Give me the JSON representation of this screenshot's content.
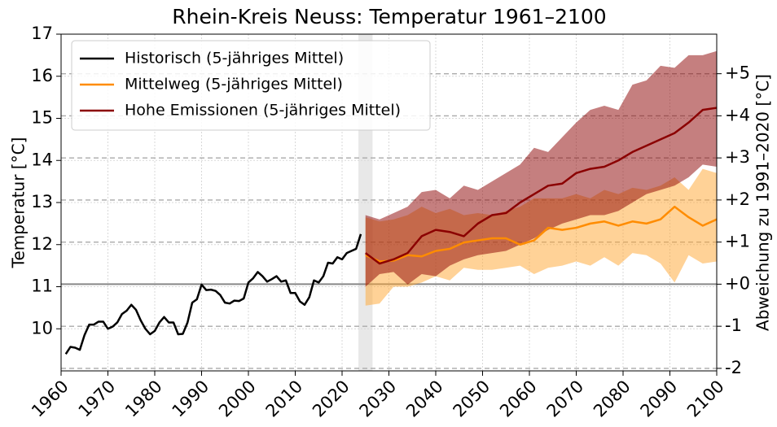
{
  "chart_data": {
    "type": "line",
    "title": "Rhein-Kreis Neuss: Temperatur 1961–2100",
    "ylabel": "Temperatur [°C]",
    "y2label": "Abweichung zu 1991–2020 [°C]",
    "xlim": [
      1960,
      2100
    ],
    "xticks": [
      1960,
      1970,
      1980,
      1990,
      2000,
      2010,
      2020,
      2030,
      2040,
      2050,
      2060,
      2070,
      2080,
      2090,
      2100
    ],
    "ylim": [
      9.0,
      17
    ],
    "yticks": [
      10,
      11,
      12,
      13,
      14,
      15,
      16,
      17
    ],
    "y2lim": [
      -2.06,
      5.94
    ],
    "y2ticks": [
      -2,
      -1,
      {
        "value": 0,
        "label": "+0"
      },
      {
        "value": 1,
        "label": "+1"
      },
      {
        "value": 2,
        "label": "+2"
      },
      {
        "value": 3,
        "label": "+3"
      },
      {
        "value": 4,
        "label": "+4"
      },
      {
        "value": 5,
        "label": "+5"
      }
    ],
    "grid": true,
    "legend": "upper left",
    "highlight_x": [
      2023.5,
      2026.5
    ],
    "series": [
      {
        "name": "Historisch (5-jähriges Mittel)",
        "color": "#000000",
        "x": [
          1961,
          1962,
          1963,
          1964,
          1965,
          1966,
          1967,
          1968,
          1969,
          1970,
          1971,
          1972,
          1973,
          1974,
          1975,
          1976,
          1977,
          1978,
          1979,
          1980,
          1981,
          1982,
          1983,
          1984,
          1985,
          1986,
          1987,
          1988,
          1989,
          1990,
          1991,
          1992,
          1993,
          1994,
          1995,
          1996,
          1997,
          1998,
          1999,
          2000,
          2001,
          2002,
          2003,
          2004,
          2005,
          2006,
          2007,
          2008,
          2009,
          2010,
          2011,
          2012,
          2013,
          2014,
          2015,
          2016,
          2017,
          2018,
          2019,
          2020,
          2021,
          2022,
          2023,
          2024
        ],
        "values": [
          9.4,
          9.57,
          9.55,
          9.5,
          9.85,
          10.1,
          10.1,
          10.17,
          10.17,
          10.0,
          10.05,
          10.15,
          10.35,
          10.43,
          10.57,
          10.45,
          10.2,
          10.0,
          9.87,
          9.95,
          10.15,
          10.28,
          10.15,
          10.15,
          9.87,
          9.88,
          10.15,
          10.62,
          10.7,
          11.05,
          10.92,
          10.93,
          10.9,
          10.8,
          10.62,
          10.6,
          10.67,
          10.66,
          10.72,
          11.1,
          11.2,
          11.35,
          11.25,
          11.12,
          11.18,
          11.25,
          11.12,
          11.15,
          10.85,
          10.85,
          10.65,
          10.57,
          10.75,
          11.15,
          11.1,
          11.25,
          11.57,
          11.55,
          11.7,
          11.65,
          11.8,
          11.85,
          11.9,
          12.25
        ]
      },
      {
        "name": "Mittelweg (5-jähriges Mittel)",
        "color": "#ff8c00",
        "band_color": "#ffa530",
        "x": [
          2025,
          2028,
          2031,
          2034,
          2037,
          2040,
          2043,
          2046,
          2049,
          2052,
          2055,
          2058,
          2061,
          2064,
          2067,
          2070,
          2073,
          2076,
          2079,
          2082,
          2085,
          2088,
          2091,
          2094,
          2097,
          2100
        ],
        "values": [
          11.75,
          11.6,
          11.62,
          11.75,
          11.72,
          11.85,
          11.9,
          12.05,
          12.1,
          12.15,
          12.15,
          12.0,
          12.1,
          12.4,
          12.35,
          12.4,
          12.5,
          12.55,
          12.45,
          12.55,
          12.5,
          12.6,
          12.9,
          12.65,
          12.45,
          12.6
        ],
        "lower": [
          10.55,
          10.6,
          11.0,
          11.0,
          11.1,
          11.25,
          11.15,
          11.45,
          11.4,
          11.4,
          11.45,
          11.5,
          11.3,
          11.45,
          11.5,
          11.6,
          11.5,
          11.7,
          11.5,
          11.8,
          11.75,
          11.55,
          11.1,
          11.75,
          11.55,
          11.6
        ],
        "upper": [
          12.65,
          12.55,
          12.6,
          12.7,
          12.9,
          12.75,
          12.85,
          12.7,
          12.75,
          12.7,
          12.8,
          12.9,
          13.1,
          13.1,
          13.1,
          13.2,
          13.1,
          13.3,
          13.2,
          13.35,
          13.3,
          13.4,
          13.6,
          13.3,
          13.8,
          13.7
        ]
      },
      {
        "name": "Hohe Emissionen (5-jähriges Mittel)",
        "color": "#8b0000",
        "band_color": "#8b0000",
        "x": [
          2025,
          2028,
          2031,
          2034,
          2037,
          2040,
          2043,
          2046,
          2049,
          2052,
          2055,
          2058,
          2061,
          2064,
          2067,
          2070,
          2073,
          2076,
          2079,
          2082,
          2085,
          2088,
          2091,
          2094,
          2097,
          2100
        ],
        "values": [
          11.8,
          11.55,
          11.65,
          11.8,
          12.2,
          12.35,
          12.3,
          12.2,
          12.5,
          12.7,
          12.75,
          13.0,
          13.2,
          13.4,
          13.45,
          13.7,
          13.8,
          13.85,
          14.0,
          14.2,
          14.35,
          14.5,
          14.65,
          14.9,
          15.2,
          15.25
        ],
        "lower": [
          11.0,
          11.3,
          11.35,
          11.05,
          11.3,
          11.25,
          11.5,
          11.65,
          11.75,
          11.8,
          11.85,
          12.0,
          12.15,
          12.35,
          12.5,
          12.6,
          12.7,
          12.7,
          12.8,
          13.0,
          13.2,
          13.3,
          13.4,
          13.6,
          13.9,
          13.85
        ],
        "upper": [
          12.7,
          12.6,
          12.75,
          12.9,
          13.25,
          13.3,
          13.1,
          13.4,
          13.3,
          13.5,
          13.7,
          13.9,
          14.3,
          14.2,
          14.55,
          14.9,
          15.2,
          15.3,
          15.2,
          15.8,
          15.9,
          16.25,
          16.2,
          16.5,
          16.5,
          16.6
        ]
      }
    ]
  }
}
